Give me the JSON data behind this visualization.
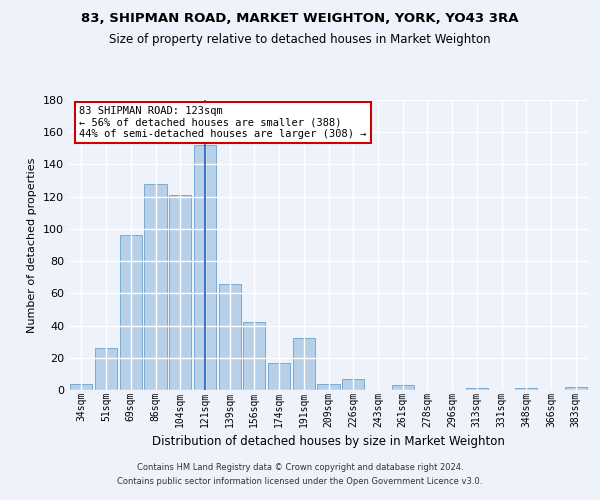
{
  "title1": "83, SHIPMAN ROAD, MARKET WEIGHTON, YORK, YO43 3RA",
  "title2": "Size of property relative to detached houses in Market Weighton",
  "xlabel": "Distribution of detached houses by size in Market Weighton",
  "ylabel": "Number of detached properties",
  "categories": [
    "34sqm",
    "51sqm",
    "69sqm",
    "86sqm",
    "104sqm",
    "121sqm",
    "139sqm",
    "156sqm",
    "174sqm",
    "191sqm",
    "209sqm",
    "226sqm",
    "243sqm",
    "261sqm",
    "278sqm",
    "296sqm",
    "313sqm",
    "331sqm",
    "348sqm",
    "366sqm",
    "383sqm"
  ],
  "values": [
    4,
    26,
    96,
    128,
    121,
    152,
    66,
    42,
    17,
    32,
    4,
    7,
    0,
    3,
    0,
    0,
    1,
    0,
    1,
    0,
    2
  ],
  "highlight_index": 5,
  "bar_color": "#b8cfe8",
  "bar_edge_color": "#7aaad0",
  "highlight_line_color": "#2060b0",
  "background_color": "#eef2fb",
  "plot_bg_color": "#eef2fb",
  "grid_color": "#ffffff",
  "annotation_text_line1": "83 SHIPMAN ROAD: 123sqm",
  "annotation_text_line2": "← 56% of detached houses are smaller (388)",
  "annotation_text_line3": "44% of semi-detached houses are larger (308) →",
  "annotation_box_color": "#ffffff",
  "annotation_box_edge_color": "#cc0000",
  "footer1": "Contains HM Land Registry data © Crown copyright and database right 2024.",
  "footer2": "Contains public sector information licensed under the Open Government Licence v3.0.",
  "ylim": [
    0,
    180
  ],
  "yticks": [
    0,
    20,
    40,
    60,
    80,
    100,
    120,
    140,
    160,
    180
  ]
}
